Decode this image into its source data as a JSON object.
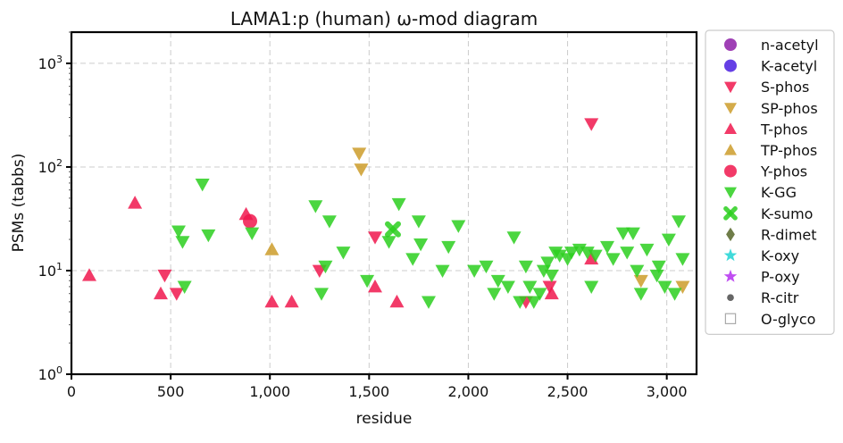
{
  "chart_data": {
    "type": "scatter",
    "title": "LAMA1:p (human) ω-mod diagram",
    "xlabel": "residue",
    "ylabel": "PSMs (tabbs)",
    "xlim": [
      0,
      3150
    ],
    "ylim": [
      1,
      2000
    ],
    "yscale": "log",
    "grid": true,
    "legend_position": "right",
    "x_ticks": [
      {
        "value": 0,
        "label": "0"
      },
      {
        "value": 500,
        "label": "500"
      },
      {
        "value": 1000,
        "label": "1,000"
      },
      {
        "value": 1500,
        "label": "1,500"
      },
      {
        "value": 2000,
        "label": "2,000"
      },
      {
        "value": 2500,
        "label": "2,500"
      },
      {
        "value": 3000,
        "label": "3,000"
      }
    ],
    "y_ticks": [
      {
        "value": 1,
        "base": "10",
        "exp": "0"
      },
      {
        "value": 10,
        "base": "10",
        "exp": "1"
      },
      {
        "value": 100,
        "base": "10",
        "exp": "2"
      },
      {
        "value": 1000,
        "base": "10",
        "exp": "3"
      }
    ],
    "series": [
      {
        "name": "n-acetyl",
        "marker": "circle",
        "color": "#8e1fa8",
        "points": []
      },
      {
        "name": "K-acetyl",
        "marker": "circle",
        "color": "#4a1de0",
        "points": []
      },
      {
        "name": "S-phos",
        "marker": "triangle-down",
        "color": "#f0184e",
        "points": [
          [
            470,
            9
          ],
          [
            1530,
            21
          ],
          [
            2620,
            260
          ],
          [
            1250,
            10
          ],
          [
            2410,
            7
          ],
          [
            2290,
            5
          ],
          [
            530,
            6
          ]
        ]
      },
      {
        "name": "SP-phos",
        "marker": "triangle-down",
        "color": "#cc9c2a",
        "points": [
          [
            1450,
            135
          ],
          [
            1460,
            95
          ],
          [
            2870,
            8
          ],
          [
            3080,
            7
          ]
        ]
      },
      {
        "name": "T-phos",
        "marker": "triangle-up",
        "color": "#f0184e",
        "points": [
          [
            90,
            9
          ],
          [
            320,
            45
          ],
          [
            450,
            6
          ],
          [
            1010,
            5
          ],
          [
            1110,
            5
          ],
          [
            1530,
            7
          ],
          [
            1640,
            5
          ],
          [
            2620,
            13
          ],
          [
            2420,
            6
          ],
          [
            880,
            35
          ]
        ]
      },
      {
        "name": "TP-phos",
        "marker": "triangle-up",
        "color": "#cc9c2a",
        "points": [
          [
            1010,
            16
          ]
        ]
      },
      {
        "name": "Y-phos",
        "marker": "circle",
        "color": "#f0184e",
        "points": [
          [
            900,
            30
          ]
        ]
      },
      {
        "name": "K-GG",
        "marker": "triangle-down",
        "color": "#2bcf1f",
        "points": [
          [
            540,
            24
          ],
          [
            560,
            19
          ],
          [
            570,
            7
          ],
          [
            660,
            68
          ],
          [
            690,
            22
          ],
          [
            910,
            23
          ],
          [
            1230,
            42
          ],
          [
            1260,
            6
          ],
          [
            1280,
            11
          ],
          [
            1300,
            30
          ],
          [
            1370,
            15
          ],
          [
            1490,
            8
          ],
          [
            1600,
            19
          ],
          [
            1650,
            44
          ],
          [
            1720,
            13
          ],
          [
            1750,
            30
          ],
          [
            1760,
            18
          ],
          [
            1800,
            5
          ],
          [
            1870,
            10
          ],
          [
            1900,
            17
          ],
          [
            1950,
            27
          ],
          [
            2030,
            10
          ],
          [
            2090,
            11
          ],
          [
            2130,
            6
          ],
          [
            2150,
            8
          ],
          [
            2200,
            7
          ],
          [
            2230,
            21
          ],
          [
            2260,
            5
          ],
          [
            2290,
            11
          ],
          [
            2310,
            7
          ],
          [
            2330,
            5
          ],
          [
            2360,
            6
          ],
          [
            2380,
            10
          ],
          [
            2400,
            12
          ],
          [
            2420,
            9
          ],
          [
            2440,
            15
          ],
          [
            2460,
            14
          ],
          [
            2500,
            13
          ],
          [
            2520,
            15
          ],
          [
            2560,
            16
          ],
          [
            2600,
            15
          ],
          [
            2620,
            7
          ],
          [
            2640,
            14
          ],
          [
            2700,
            17
          ],
          [
            2730,
            13
          ],
          [
            2780,
            23
          ],
          [
            2800,
            15
          ],
          [
            2830,
            23
          ],
          [
            2850,
            10
          ],
          [
            2870,
            6
          ],
          [
            2900,
            16
          ],
          [
            2950,
            9
          ],
          [
            2960,
            11
          ],
          [
            2990,
            7
          ],
          [
            3010,
            20
          ],
          [
            3040,
            6
          ],
          [
            3060,
            30
          ],
          [
            3080,
            13
          ]
        ]
      },
      {
        "name": "K-sumo",
        "marker": "x",
        "color": "#2bcf1f",
        "points": [
          [
            1620,
            25
          ]
        ]
      },
      {
        "name": "R-dimet",
        "marker": "diamond",
        "color": "#566629",
        "points": []
      },
      {
        "name": "K-oxy",
        "marker": "star",
        "color": "#1ed4d4",
        "points": []
      },
      {
        "name": "P-oxy",
        "marker": "star",
        "color": "#b52ff0",
        "points": []
      },
      {
        "name": "R-citr",
        "marker": "dot",
        "color": "#666666",
        "points": []
      },
      {
        "name": "O-glyco",
        "marker": "square-open",
        "color": "#aaaaaa",
        "points": []
      }
    ]
  }
}
